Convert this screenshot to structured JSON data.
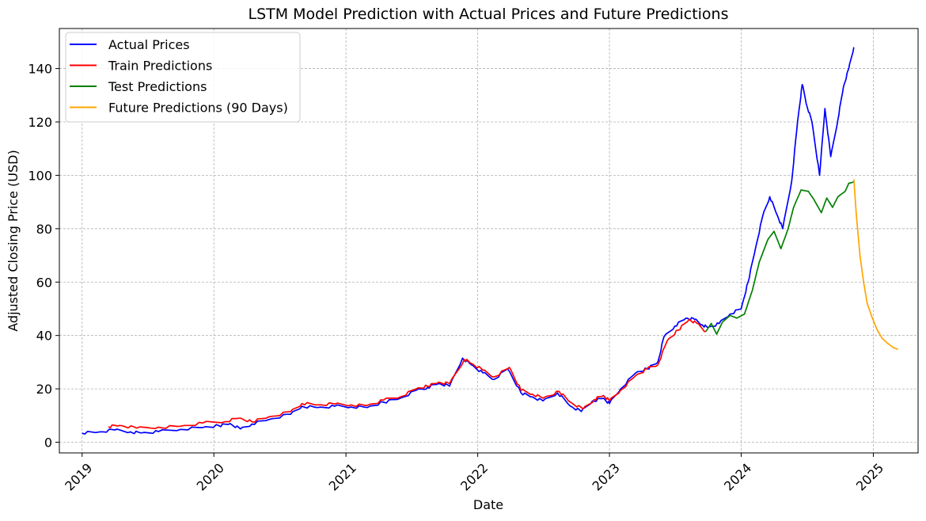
{
  "chart_data": {
    "type": "line",
    "title": "LSTM Model Prediction with Actual Prices and Future Predictions",
    "xlabel": "Date",
    "ylabel": "Adjusted Closing Price (USD)",
    "x_axis": "date",
    "xlim": [
      "2018-10-30",
      "2025-05-05"
    ],
    "ylim": [
      -4,
      155
    ],
    "xticks": [
      "2019",
      "2020",
      "2021",
      "2022",
      "2023",
      "2024",
      "2025"
    ],
    "yticks": [
      0,
      20,
      40,
      60,
      80,
      100,
      120,
      140
    ],
    "grid": true,
    "legend": "top-left",
    "series": [
      {
        "name": "Actual Prices",
        "color": "#0000ff",
        "points": [
          [
            "2019-01-01",
            3.4
          ],
          [
            "2019-02-15",
            3.8
          ],
          [
            "2019-04-01",
            4.6
          ],
          [
            "2019-05-15",
            3.9
          ],
          [
            "2019-06-15",
            3.5
          ],
          [
            "2019-08-01",
            4.0
          ],
          [
            "2019-10-01",
            4.8
          ],
          [
            "2019-12-01",
            5.5
          ],
          [
            "2020-01-15",
            6.2
          ],
          [
            "2020-02-15",
            7.0
          ],
          [
            "2020-03-15",
            5.0
          ],
          [
            "2020-04-15",
            6.8
          ],
          [
            "2020-06-01",
            8.5
          ],
          [
            "2020-08-01",
            10.5
          ],
          [
            "2020-09-01",
            13.5
          ],
          [
            "2020-10-15",
            13.0
          ],
          [
            "2020-12-01",
            13.5
          ],
          [
            "2021-01-15",
            13.2
          ],
          [
            "2021-03-01",
            13.0
          ],
          [
            "2021-04-15",
            15.0
          ],
          [
            "2021-06-01",
            16.5
          ],
          [
            "2021-07-15",
            19.5
          ],
          [
            "2021-08-15",
            20.5
          ],
          [
            "2021-09-15",
            22.0
          ],
          [
            "2021-10-15",
            21.0
          ],
          [
            "2021-11-20",
            31.5
          ],
          [
            "2021-12-15",
            29.0
          ],
          [
            "2022-01-15",
            26.0
          ],
          [
            "2022-02-15",
            23.5
          ],
          [
            "2022-03-25",
            27.5
          ],
          [
            "2022-05-01",
            18.5
          ],
          [
            "2022-06-01",
            17.0
          ],
          [
            "2022-07-01",
            15.5
          ],
          [
            "2022-08-10",
            18.5
          ],
          [
            "2022-09-15",
            13.5
          ],
          [
            "2022-10-15",
            11.5
          ],
          [
            "2022-11-15",
            15.5
          ],
          [
            "2022-12-15",
            16.5
          ],
          [
            "2023-01-01",
            14.5
          ],
          [
            "2023-02-01",
            20.0
          ],
          [
            "2023-03-15",
            26.0
          ],
          [
            "2023-04-15",
            27.5
          ],
          [
            "2023-05-15",
            30.0
          ],
          [
            "2023-06-01",
            39.5
          ],
          [
            "2023-07-01",
            43.5
          ],
          [
            "2023-08-01",
            46.5
          ],
          [
            "2023-08-25",
            46.0
          ],
          [
            "2023-09-15",
            44.0
          ],
          [
            "2023-10-01",
            43.0
          ],
          [
            "2023-11-01",
            44.5
          ],
          [
            "2023-12-01",
            48.0
          ],
          [
            "2024-01-01",
            50.0
          ],
          [
            "2024-01-20",
            60.0
          ],
          [
            "2024-02-10",
            73.0
          ],
          [
            "2024-03-01",
            85.0
          ],
          [
            "2024-03-20",
            92.0
          ],
          [
            "2024-04-10",
            85.0
          ],
          [
            "2024-04-25",
            80.0
          ],
          [
            "2024-05-20",
            98.0
          ],
          [
            "2024-06-05",
            120.0
          ],
          [
            "2024-06-18",
            134.0
          ],
          [
            "2024-07-01",
            126.0
          ],
          [
            "2024-07-15",
            120.0
          ],
          [
            "2024-08-05",
            100.0
          ],
          [
            "2024-08-20",
            125.0
          ],
          [
            "2024-09-05",
            107.0
          ],
          [
            "2024-09-25",
            121.0
          ],
          [
            "2024-10-10",
            133.0
          ],
          [
            "2024-10-25",
            140.0
          ],
          [
            "2024-11-08",
            148.0
          ]
        ]
      },
      {
        "name": "Train Predictions",
        "color": "#ff0000",
        "points": [
          [
            "2019-03-15",
            5.8
          ],
          [
            "2019-04-15",
            6.3
          ],
          [
            "2019-06-01",
            5.3
          ],
          [
            "2019-08-01",
            5.6
          ],
          [
            "2019-10-01",
            6.0
          ],
          [
            "2019-12-01",
            7.2
          ],
          [
            "2020-02-01",
            7.7
          ],
          [
            "2020-03-10",
            9.0
          ],
          [
            "2020-04-15",
            7.7
          ],
          [
            "2020-06-01",
            9.5
          ],
          [
            "2020-08-01",
            11.5
          ],
          [
            "2020-09-01",
            14.5
          ],
          [
            "2020-10-15",
            14.0
          ],
          [
            "2020-12-01",
            14.3
          ],
          [
            "2021-01-15",
            14.0
          ],
          [
            "2021-03-01",
            13.8
          ],
          [
            "2021-04-15",
            15.8
          ],
          [
            "2021-06-01",
            17.0
          ],
          [
            "2021-07-15",
            20.0
          ],
          [
            "2021-08-15",
            21.0
          ],
          [
            "2021-09-15",
            22.5
          ],
          [
            "2021-10-15",
            22.0
          ],
          [
            "2021-11-25",
            31.0
          ],
          [
            "2021-12-15",
            29.5
          ],
          [
            "2022-01-15",
            27.0
          ],
          [
            "2022-02-15",
            24.5
          ],
          [
            "2022-03-30",
            28.0
          ],
          [
            "2022-05-01",
            19.5
          ],
          [
            "2022-06-01",
            18.0
          ],
          [
            "2022-07-01",
            16.5
          ],
          [
            "2022-08-15",
            19.0
          ],
          [
            "2022-09-15",
            15.0
          ],
          [
            "2022-10-20",
            12.5
          ],
          [
            "2022-11-20",
            16.0
          ],
          [
            "2022-12-15",
            17.5
          ],
          [
            "2023-01-01",
            15.5
          ],
          [
            "2023-02-01",
            19.5
          ],
          [
            "2023-03-15",
            25.0
          ],
          [
            "2023-04-15",
            27.5
          ],
          [
            "2023-05-15",
            29.0
          ],
          [
            "2023-06-10",
            38.0
          ],
          [
            "2023-07-10",
            42.0
          ],
          [
            "2023-08-10",
            46.0
          ],
          [
            "2023-09-01",
            44.5
          ],
          [
            "2023-09-25",
            41.5
          ]
        ]
      },
      {
        "name": "Test Predictions",
        "color": "#008000",
        "points": [
          [
            "2023-09-25",
            41.5
          ],
          [
            "2023-10-10",
            44.5
          ],
          [
            "2023-10-25",
            40.5
          ],
          [
            "2023-11-10",
            45.0
          ],
          [
            "2023-12-01",
            47.5
          ],
          [
            "2023-12-20",
            46.5
          ],
          [
            "2024-01-10",
            48.0
          ],
          [
            "2024-02-01",
            57.0
          ],
          [
            "2024-02-20",
            67.5
          ],
          [
            "2024-03-15",
            76.0
          ],
          [
            "2024-04-01",
            79.0
          ],
          [
            "2024-04-20",
            72.5
          ],
          [
            "2024-05-10",
            80.0
          ],
          [
            "2024-05-25",
            88.0
          ],
          [
            "2024-06-15",
            94.5
          ],
          [
            "2024-07-05",
            94.0
          ],
          [
            "2024-07-20",
            91.0
          ],
          [
            "2024-08-10",
            86.0
          ],
          [
            "2024-08-25",
            91.5
          ],
          [
            "2024-09-10",
            88.0
          ],
          [
            "2024-09-25",
            92.0
          ],
          [
            "2024-10-15",
            94.0
          ],
          [
            "2024-10-25",
            97.0
          ],
          [
            "2024-11-08",
            97.5
          ]
        ]
      },
      {
        "name": "Future Predictions (90 Days)",
        "color": "#ffa500",
        "points": [
          [
            "2024-11-08",
            98.5
          ],
          [
            "2024-11-15",
            85.0
          ],
          [
            "2024-11-25",
            70.0
          ],
          [
            "2024-12-05",
            60.0
          ],
          [
            "2024-12-15",
            52.0
          ],
          [
            "2024-12-28",
            47.0
          ],
          [
            "2025-01-10",
            42.5
          ],
          [
            "2025-01-25",
            39.0
          ],
          [
            "2025-02-10",
            37.0
          ],
          [
            "2025-02-25",
            35.5
          ],
          [
            "2025-03-10",
            34.8
          ]
        ]
      }
    ]
  }
}
